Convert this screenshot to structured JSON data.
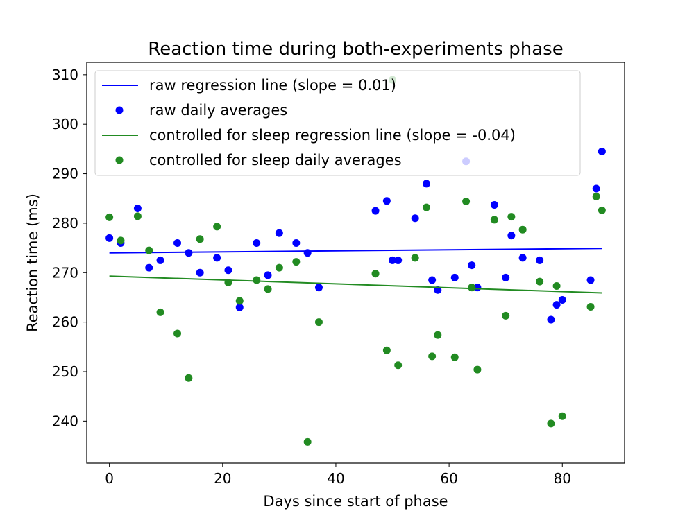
{
  "chart_data": {
    "type": "scatter",
    "title": "Reaction time during both-experiments phase",
    "xlabel": "Days since start of phase",
    "ylabel": "Reaction time (ms)",
    "xlim": [
      -4,
      91
    ],
    "ylim": [
      231.5,
      312.5
    ],
    "xticks": [
      0,
      20,
      40,
      60,
      80
    ],
    "yticks": [
      240,
      250,
      260,
      270,
      280,
      290,
      300,
      310
    ],
    "grid": false,
    "legend_position": "upper-left",
    "series": [
      {
        "name": "raw regression line (slope = 0.01)",
        "kind": "line",
        "color": "#0000ff",
        "points": [
          [
            0,
            274.0
          ],
          [
            87,
            274.9
          ]
        ]
      },
      {
        "name": "raw daily averages",
        "kind": "scatter",
        "color": "#0000ff",
        "points": [
          [
            0,
            277.0
          ],
          [
            2,
            276.0
          ],
          [
            5,
            283.0
          ],
          [
            7,
            271.0
          ],
          [
            9,
            272.5
          ],
          [
            12,
            276.0
          ],
          [
            14,
            274.0
          ],
          [
            16,
            270.0
          ],
          [
            19,
            273.0
          ],
          [
            21,
            270.5
          ],
          [
            23,
            263.0
          ],
          [
            26,
            276.0
          ],
          [
            28,
            269.5
          ],
          [
            30,
            278.0
          ],
          [
            33,
            276.0
          ],
          [
            35,
            274.0
          ],
          [
            37,
            267.0
          ],
          [
            47,
            282.5
          ],
          [
            49,
            284.5
          ],
          [
            50,
            272.5
          ],
          [
            51,
            272.5
          ],
          [
            54,
            281.0
          ],
          [
            56,
            288.0
          ],
          [
            57,
            268.5
          ],
          [
            58,
            266.5
          ],
          [
            61,
            269.0
          ],
          [
            63,
            292.5
          ],
          [
            64,
            271.5
          ],
          [
            65,
            267.0
          ],
          [
            68,
            283.7
          ],
          [
            70,
            269.0
          ],
          [
            71,
            277.5
          ],
          [
            73,
            273.0
          ],
          [
            76,
            272.5
          ],
          [
            78,
            260.5
          ],
          [
            79,
            263.5
          ],
          [
            80,
            264.5
          ],
          [
            85,
            268.5
          ],
          [
            86,
            287.0
          ],
          [
            87,
            294.5
          ]
        ]
      },
      {
        "name": "controlled for sleep regression line (slope = -0.04)",
        "kind": "line",
        "color": "#228b22",
        "points": [
          [
            0,
            269.3
          ],
          [
            87,
            265.9
          ]
        ]
      },
      {
        "name": "controlled for sleep daily averages",
        "kind": "scatter",
        "color": "#228b22",
        "points": [
          [
            0,
            281.2
          ],
          [
            2,
            276.5
          ],
          [
            5,
            281.4
          ],
          [
            7,
            274.5
          ],
          [
            9,
            262.0
          ],
          [
            12,
            257.7
          ],
          [
            14,
            248.7
          ],
          [
            16,
            276.8
          ],
          [
            19,
            279.3
          ],
          [
            21,
            268.0
          ],
          [
            23,
            264.3
          ],
          [
            26,
            268.5
          ],
          [
            28,
            266.7
          ],
          [
            30,
            271.0
          ],
          [
            33,
            272.2
          ],
          [
            35,
            235.8
          ],
          [
            37,
            260.0
          ],
          [
            47,
            269.8
          ],
          [
            49,
            254.3
          ],
          [
            50,
            309.0
          ],
          [
            51,
            251.3
          ],
          [
            54,
            273.0
          ],
          [
            56,
            283.2
          ],
          [
            57,
            253.1
          ],
          [
            58,
            257.4
          ],
          [
            61,
            252.9
          ],
          [
            63,
            284.4
          ],
          [
            64,
            267.0
          ],
          [
            65,
            250.4
          ],
          [
            68,
            280.7
          ],
          [
            70,
            261.3
          ],
          [
            71,
            281.3
          ],
          [
            73,
            278.7
          ],
          [
            76,
            268.2
          ],
          [
            78,
            239.5
          ],
          [
            79,
            267.3
          ],
          [
            80,
            241.0
          ],
          [
            85,
            263.1
          ],
          [
            86,
            285.4
          ],
          [
            87,
            282.6
          ]
        ]
      }
    ]
  }
}
